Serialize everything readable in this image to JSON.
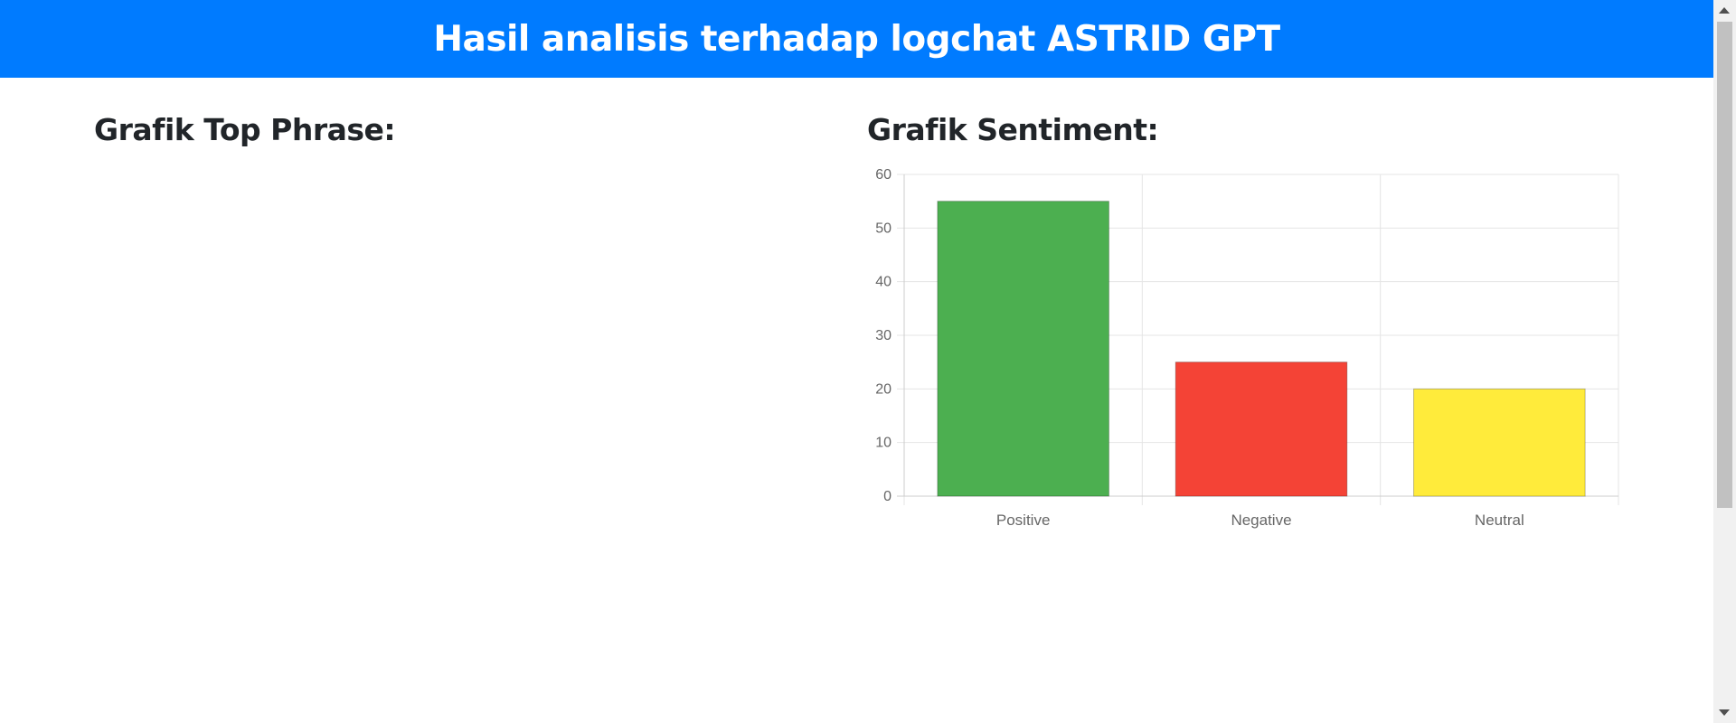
{
  "header": {
    "title": "Hasil analisis terhadap logchat ASTRID GPT"
  },
  "sections": {
    "top_phrase": {
      "title": "Grafik Top Phrase:"
    },
    "sentiment": {
      "title": "Grafik Sentiment:"
    }
  },
  "colors": {
    "header_bg": "#007bff",
    "positive": "#4caf50",
    "negative": "#f44336",
    "neutral": "#ffeb3b"
  },
  "chart_data": {
    "type": "bar",
    "title": "",
    "xlabel": "",
    "ylabel": "",
    "categories": [
      "Positive",
      "Negative",
      "Neutral"
    ],
    "values": [
      55,
      25,
      20
    ],
    "bar_colors": [
      "#4caf50",
      "#f44336",
      "#ffeb3b"
    ],
    "ylim": [
      0,
      60
    ],
    "yticks": [
      0,
      10,
      20,
      30,
      40,
      50,
      60
    ],
    "grid": true,
    "legend": "none"
  }
}
